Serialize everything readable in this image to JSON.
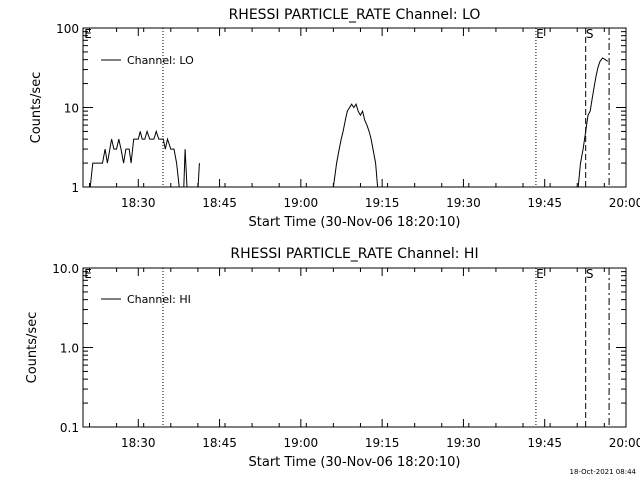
{
  "footer": {
    "timestamp": "18-Oct-2021 08:44"
  },
  "chart_data": [
    {
      "type": "line",
      "title": "RHESSI PARTICLE_RATE Channel: LO",
      "xlabel": "Start Time (30-Nov-06 18:20:10)",
      "ylabel": "Counts/sec",
      "yscale": "log",
      "xlim": [
        18.33,
        20.0
      ],
      "ylim": [
        1,
        100
      ],
      "x_tick_labels": [
        "18:30",
        "18:45",
        "19:00",
        "19:15",
        "19:30",
        "19:45",
        "20:00"
      ],
      "y_tick_labels": [
        "1",
        "10",
        "100"
      ],
      "legend": {
        "position": "top-left",
        "entries": [
          "Channel: LO"
        ]
      },
      "markers": [
        {
          "label": "E",
          "x": 18.33,
          "style": "none"
        },
        {
          "label": "",
          "x": 18.576,
          "style": "dotted"
        },
        {
          "label": "E",
          "x": 19.723,
          "style": "dotted"
        },
        {
          "label": "S",
          "x": 19.876,
          "style": "dashed"
        },
        {
          "label": "",
          "x": 19.948,
          "style": "dashdot"
        }
      ],
      "series": [
        {
          "name": "Channel: LO",
          "segments": [
            [
              [
                18.352,
                1
              ],
              [
                18.36,
                2
              ],
              [
                18.39,
                2
              ],
              [
                18.398,
                3
              ],
              [
                18.405,
                2
              ],
              [
                18.418,
                4
              ],
              [
                18.425,
                3
              ],
              [
                18.433,
                3
              ],
              [
                18.44,
                4
              ],
              [
                18.447,
                3
              ],
              [
                18.455,
                2
              ],
              [
                18.462,
                3
              ],
              [
                18.472,
                3
              ],
              [
                18.478,
                2
              ],
              [
                18.486,
                4
              ],
              [
                18.5,
                4
              ],
              [
                18.506,
                5
              ],
              [
                18.512,
                4
              ],
              [
                18.52,
                4
              ],
              [
                18.527,
                5
              ],
              [
                18.535,
                4
              ],
              [
                18.548,
                4
              ],
              [
                18.555,
                5
              ],
              [
                18.563,
                4
              ],
              [
                18.577,
                4
              ],
              [
                18.583,
                3
              ],
              [
                18.59,
                4
              ],
              [
                18.6,
                3
              ],
              [
                18.61,
                3
              ],
              [
                18.618,
                2
              ],
              [
                18.626,
                1
              ]
            ],
            [
              [
                18.64,
                1
              ],
              [
                18.644,
                3
              ],
              [
                18.65,
                1
              ]
            ],
            [
              [
                18.684,
                1
              ],
              [
                18.688,
                2
              ]
            ],
            [
              [
                19.1,
                1
              ],
              [
                19.11,
                2
              ],
              [
                19.118,
                3
              ],
              [
                19.124,
                4
              ],
              [
                19.13,
                5
              ],
              [
                19.137,
                7
              ],
              [
                19.143,
                9
              ],
              [
                19.15,
                10
              ],
              [
                19.156,
                11
              ],
              [
                19.163,
                10
              ],
              [
                19.17,
                11
              ],
              [
                19.176,
                9
              ],
              [
                19.183,
                8
              ],
              [
                19.19,
                9
              ],
              [
                19.196,
                7
              ],
              [
                19.203,
                6
              ],
              [
                19.21,
                5
              ],
              [
                19.216,
                4
              ],
              [
                19.222,
                3
              ],
              [
                19.23,
                2
              ],
              [
                19.236,
                1
              ]
            ],
            [
              [
                19.853,
                1
              ],
              [
                19.86,
                2
              ],
              [
                19.868,
                3
              ],
              [
                19.876,
                5
              ],
              [
                19.883,
                8
              ],
              [
                19.89,
                9
              ],
              [
                19.896,
                13
              ],
              [
                19.902,
                18
              ],
              [
                19.908,
                25
              ],
              [
                19.914,
                32
              ],
              [
                19.92,
                38
              ],
              [
                19.928,
                42
              ],
              [
                19.936,
                40
              ],
              [
                19.944,
                38
              ]
            ]
          ]
        }
      ]
    },
    {
      "type": "line",
      "title": "RHESSI PARTICLE_RATE Channel: HI",
      "xlabel": "Start Time (30-Nov-06 18:20:10)",
      "ylabel": "Counts/sec",
      "yscale": "log",
      "xlim": [
        18.33,
        20.0
      ],
      "ylim": [
        0.1,
        10
      ],
      "x_tick_labels": [
        "18:30",
        "18:45",
        "19:00",
        "19:15",
        "19:30",
        "19:45",
        "20:00"
      ],
      "y_tick_labels": [
        "0.1",
        "1.0",
        "10.0"
      ],
      "legend": {
        "position": "top-left",
        "entries": [
          "Channel: HI"
        ]
      },
      "markers": [
        {
          "label": "E",
          "x": 18.33,
          "style": "none"
        },
        {
          "label": "",
          "x": 18.576,
          "style": "dotted"
        },
        {
          "label": "E",
          "x": 19.723,
          "style": "dotted"
        },
        {
          "label": "S",
          "x": 19.876,
          "style": "dashed"
        },
        {
          "label": "",
          "x": 19.948,
          "style": "dashdot"
        }
      ],
      "series": [
        {
          "name": "Channel: HI",
          "segments": []
        }
      ]
    }
  ]
}
